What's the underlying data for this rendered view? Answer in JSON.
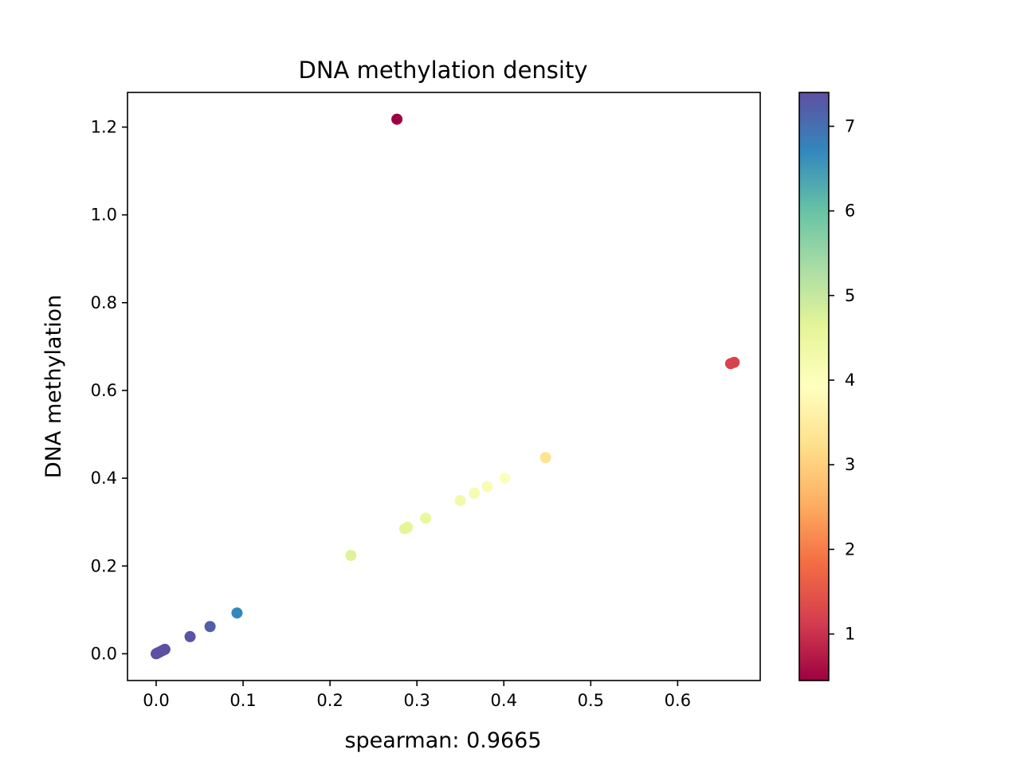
{
  "chart_data": {
    "type": "scatter",
    "title": "DNA methylation density",
    "xlabel": "spearman: 0.9665",
    "ylabel": "DNA methylation",
    "xlim": [
      -0.033,
      0.695
    ],
    "ylim": [
      -0.061,
      1.279
    ],
    "xticks": [
      "0.0",
      "0.1",
      "0.2",
      "0.3",
      "0.4",
      "0.5",
      "0.6"
    ],
    "xtick_values": [
      0.0,
      0.1,
      0.2,
      0.3,
      0.4,
      0.5,
      0.6
    ],
    "yticks": [
      "0.0",
      "0.2",
      "0.4",
      "0.6",
      "0.8",
      "1.0",
      "1.2"
    ],
    "ytick_values": [
      0.0,
      0.2,
      0.4,
      0.6,
      0.8,
      1.0,
      1.2
    ],
    "grid": false,
    "colormap": "Spectral",
    "colorbar": {
      "range": [
        0.45,
        7.4
      ],
      "ticks": [
        "1",
        "2",
        "3",
        "4",
        "5",
        "6",
        "7"
      ],
      "tick_values": [
        1,
        2,
        3,
        4,
        5,
        6,
        7
      ]
    },
    "points": [
      {
        "x": 0.277,
        "y": 1.218,
        "c": 0.45
      },
      {
        "x": 0.661,
        "y": 0.661,
        "c": 1.2
      },
      {
        "x": 0.665,
        "y": 0.664,
        "c": 1.2
      },
      {
        "x": 0.448,
        "y": 0.447,
        "c": 3.3
      },
      {
        "x": 0.401,
        "y": 0.4,
        "c": 4.0
      },
      {
        "x": 0.381,
        "y": 0.381,
        "c": 4.1
      },
      {
        "x": 0.366,
        "y": 0.366,
        "c": 4.2
      },
      {
        "x": 0.35,
        "y": 0.349,
        "c": 4.3
      },
      {
        "x": 0.31,
        "y": 0.309,
        "c": 4.5
      },
      {
        "x": 0.286,
        "y": 0.285,
        "c": 4.6
      },
      {
        "x": 0.289,
        "y": 0.288,
        "c": 4.6
      },
      {
        "x": 0.224,
        "y": 0.224,
        "c": 4.7
      },
      {
        "x": 0.093,
        "y": 0.093,
        "c": 6.7
      },
      {
        "x": 0.062,
        "y": 0.062,
        "c": 7.2
      },
      {
        "x": 0.039,
        "y": 0.039,
        "c": 7.35
      },
      {
        "x": 0.01,
        "y": 0.01,
        "c": 7.4
      },
      {
        "x": 0.007,
        "y": 0.007,
        "c": 7.4
      },
      {
        "x": 0.004,
        "y": 0.004,
        "c": 7.4
      },
      {
        "x": 0.002,
        "y": 0.002,
        "c": 7.4
      },
      {
        "x": 0.0,
        "y": 0.0,
        "c": 7.4
      }
    ]
  }
}
